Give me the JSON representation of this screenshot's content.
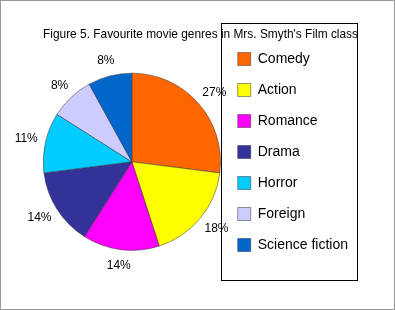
{
  "chart_data": {
    "type": "pie",
    "title": "Figure 5. Favourite movie genres in Mrs. Smyth's Film class",
    "categories": [
      "Comedy",
      "Action",
      "Romance",
      "Drama",
      "Horror",
      "Foreign",
      "Science fiction"
    ],
    "values": [
      27,
      18,
      14,
      14,
      11,
      8,
      8
    ],
    "value_labels": [
      "27%",
      "18%",
      "14%",
      "14%",
      "11%",
      "8%",
      "8%"
    ],
    "colors": [
      "#ff6600",
      "#ffff00",
      "#ff00ff",
      "#333399",
      "#00ccff",
      "#ccccff",
      "#0066cc"
    ],
    "data_labels": true,
    "legend": "right"
  }
}
